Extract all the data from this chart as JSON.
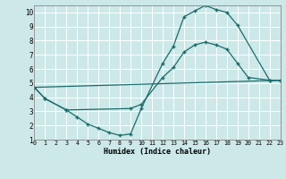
{
  "xlabel": "Humidex (Indice chaleur)",
  "xlim": [
    0,
    23
  ],
  "ylim": [
    1,
    10.5
  ],
  "xticks": [
    0,
    1,
    2,
    3,
    4,
    5,
    6,
    7,
    8,
    9,
    10,
    11,
    12,
    13,
    14,
    15,
    16,
    17,
    18,
    19,
    20,
    21,
    22,
    23
  ],
  "yticks": [
    1,
    2,
    3,
    4,
    5,
    6,
    7,
    8,
    9,
    10
  ],
  "bg_color": "#cce8e8",
  "line_color": "#1a6b6b",
  "grid_color": "#b0d8d8",
  "line1_x": [
    0,
    1,
    3,
    4,
    5,
    6,
    7,
    8,
    9,
    10,
    12,
    13,
    14,
    15,
    16,
    17,
    18,
    19,
    22,
    23
  ],
  "line1_y": [
    4.7,
    3.9,
    3.1,
    2.6,
    2.1,
    1.8,
    1.5,
    1.3,
    1.4,
    3.2,
    6.4,
    7.6,
    9.7,
    10.1,
    10.5,
    10.2,
    10.0,
    9.1,
    5.2,
    5.2
  ],
  "line2_x": [
    0,
    23
  ],
  "line2_y": [
    4.7,
    5.2
  ],
  "line3_x": [
    0,
    1,
    3,
    9,
    10,
    12,
    13,
    14,
    15,
    16,
    17,
    18,
    19,
    20,
    22,
    23
  ],
  "line3_y": [
    4.7,
    3.9,
    3.1,
    3.2,
    3.5,
    5.4,
    6.1,
    7.2,
    7.7,
    7.9,
    7.7,
    7.4,
    6.4,
    5.4,
    5.2,
    5.2
  ]
}
